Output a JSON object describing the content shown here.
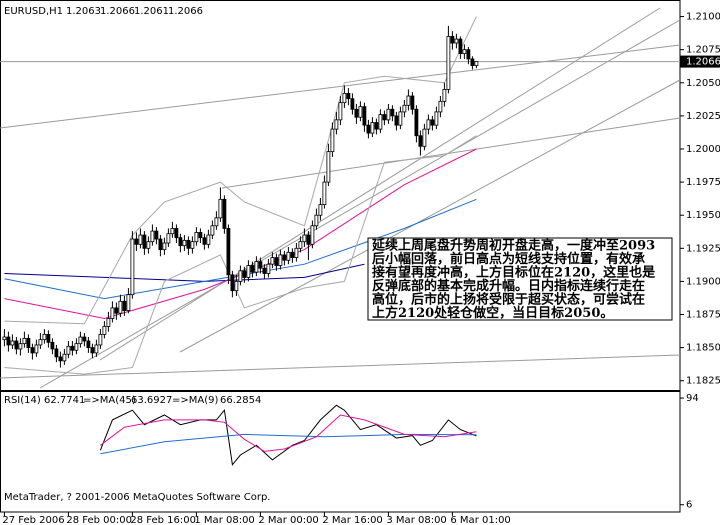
{
  "chart_data": [
    {
      "type": "candlestick",
      "symbol": "EURUSD,H1",
      "xlim": [
        -1.1,
        168.9
      ],
      "xticks": [
        {
          "value": 0,
          "label": "27 Feb 2006"
        },
        {
          "value": 16,
          "label": "28 Feb 00:00"
        },
        {
          "value": 32,
          "label": "28 Feb 16:00"
        },
        {
          "value": 48,
          "label": "1 Mar 08:00"
        },
        {
          "value": 64,
          "label": "2 Mar 00:00"
        },
        {
          "value": 80,
          "label": "2 Mar 16:00"
        },
        {
          "value": 96,
          "label": "3 Mar 08:00"
        },
        {
          "value": 112,
          "label": "6 Mar 01:00"
        }
      ],
      "ylim": [
        1.1818,
        1.2111
      ],
      "yticks": [
        {
          "value": 1.21,
          "label": "1.2100"
        },
        1.2075,
        {
          "value": 1.205,
          "label": "1.2050"
        },
        1.2025,
        {
          "value": 1.2,
          "label": "1.2000"
        },
        1.1975,
        {
          "value": 1.195,
          "label": "1.1950"
        },
        1.1925,
        {
          "value": 1.19,
          "label": "1.1900"
        },
        1.1875,
        {
          "value": 1.185,
          "label": "1.1850"
        },
        1.1825
      ],
      "bull_color": "#ffffff",
      "bear_color": "#000000",
      "open": [
        1.1856,
        1.1858,
        1.1852,
        1.1855,
        1.1849,
        1.1853,
        1.1857,
        1.185,
        1.1846,
        1.1852,
        1.1856,
        1.186,
        1.1854,
        1.1849,
        1.1843,
        1.184,
        1.1845,
        1.1851,
        1.1848,
        1.1853,
        1.1858,
        1.1855,
        1.185,
        1.1846,
        1.1852,
        1.186,
        1.1866,
        1.1872,
        1.188,
        1.1876,
        1.1885,
        1.1878,
        1.189,
        1.1932,
        1.1928,
        1.1935,
        1.1925,
        1.193,
        1.1938,
        1.1932,
        1.1924,
        1.1929,
        1.1936,
        1.194,
        1.1933,
        1.1927,
        1.1931,
        1.1925,
        1.193,
        1.1937,
        1.1933,
        1.1928,
        1.1935,
        1.1942,
        1.1948,
        1.1962,
        1.194,
        1.1905,
        1.1893,
        1.19,
        1.1908,
        1.1903,
        1.1912,
        1.1907,
        1.1915,
        1.191,
        1.1906,
        1.1913,
        1.1918,
        1.1912,
        1.192,
        1.1916,
        1.1922,
        1.1918,
        1.1925,
        1.193,
        1.1935,
        1.1928,
        1.1942,
        1.195,
        1.1958,
        1.1975,
        1.1998,
        1.2015,
        1.2022,
        1.2035,
        1.2042,
        1.2038,
        1.203,
        1.2024,
        1.2032,
        1.2018,
        1.2012,
        1.202,
        1.2015,
        1.2026,
        1.2022,
        1.203,
        1.2025,
        1.2018,
        1.2028,
        1.2033,
        1.204,
        1.203,
        1.201,
        1.2002,
        1.2015,
        1.2022,
        1.2018,
        1.2028,
        1.2036,
        1.2045,
        1.2085,
        1.208,
        1.2083,
        1.2072,
        1.2075,
        1.2068,
        1.2063
      ],
      "high": [
        1.1864,
        1.1862,
        1.186,
        1.1858,
        1.1857,
        1.1862,
        1.186,
        1.1853,
        1.1856,
        1.1861,
        1.1864,
        1.1863,
        1.1857,
        1.1852,
        1.1847,
        1.1849,
        1.1855,
        1.1855,
        1.1857,
        1.1862,
        1.1861,
        1.1858,
        1.1853,
        1.1856,
        1.1864,
        1.187,
        1.1877,
        1.1885,
        1.1884,
        1.189,
        1.1889,
        1.1895,
        1.1938,
        1.1937,
        1.194,
        1.1938,
        1.1934,
        1.1943,
        1.1941,
        1.1935,
        1.1933,
        1.194,
        1.1945,
        1.1943,
        1.1936,
        1.1935,
        1.1934,
        1.1934,
        1.1941,
        1.194,
        1.1936,
        1.1939,
        1.1946,
        1.1953,
        1.1971,
        1.1965,
        1.1943,
        1.1908,
        1.1905,
        1.1912,
        1.1911,
        1.1916,
        1.1915,
        1.1919,
        1.1918,
        1.1913,
        1.1917,
        1.1922,
        1.1921,
        1.1924,
        1.1923,
        1.1926,
        1.1925,
        1.1929,
        1.1934,
        1.194,
        1.1938,
        1.1946,
        1.1955,
        1.1963,
        1.198,
        1.2004,
        1.202,
        1.2028,
        1.204,
        1.2048,
        1.2046,
        1.2042,
        1.2034,
        1.2036,
        1.2035,
        1.2022,
        1.2024,
        1.2023,
        1.203,
        1.2029,
        1.2034,
        1.2033,
        1.2028,
        1.2032,
        1.2037,
        1.2045,
        1.2043,
        1.2033,
        1.2014,
        1.2019,
        1.2026,
        1.2025,
        1.2032,
        1.204,
        1.205,
        1.2093,
        1.2089,
        1.2087,
        1.2085,
        1.2079,
        1.2077,
        1.207,
        1.2066
      ],
      "low": [
        1.1851,
        1.1847,
        1.1849,
        1.1845,
        1.1844,
        1.185,
        1.1846,
        1.1841,
        1.1843,
        1.1849,
        1.1853,
        1.185,
        1.1845,
        1.1839,
        1.1835,
        1.1837,
        1.1842,
        1.1844,
        1.1845,
        1.185,
        1.1851,
        1.1846,
        1.1842,
        1.1843,
        1.1849,
        1.1857,
        1.1862,
        1.1869,
        1.1871,
        1.1873,
        1.1874,
        1.1876,
        1.1887,
        1.1923,
        1.1925,
        1.192,
        1.1921,
        1.1927,
        1.1928,
        1.1919,
        1.192,
        1.1926,
        1.1933,
        1.1929,
        1.1922,
        1.1923,
        1.192,
        1.1921,
        1.1927,
        1.1929,
        1.1924,
        1.1925,
        1.1932,
        1.1939,
        1.1945,
        1.1936,
        1.1898,
        1.1888,
        1.1889,
        1.1897,
        1.1899,
        1.19,
        1.1903,
        1.1904,
        1.1906,
        1.1902,
        1.1903,
        1.191,
        1.1908,
        1.1909,
        1.1912,
        1.1913,
        1.1914,
        1.1915,
        1.1922,
        1.1926,
        1.1916,
        1.1925,
        1.1939,
        1.1946,
        1.1955,
        1.1972,
        1.1994,
        1.2011,
        1.2018,
        1.2031,
        1.2033,
        1.2026,
        1.2019,
        1.2021,
        1.2013,
        1.2008,
        1.2009,
        1.2011,
        1.2012,
        1.2018,
        1.2019,
        1.2021,
        1.2014,
        1.2015,
        1.2024,
        1.2029,
        1.2026,
        1.2005,
        1.1995,
        1.1999,
        1.2011,
        1.2014,
        1.2015,
        1.2024,
        1.2032,
        1.2042,
        1.2075,
        1.2076,
        1.2068,
        1.2068,
        1.2064,
        1.206,
        1.2061
      ],
      "close": [
        1.1858,
        1.1852,
        1.1855,
        1.1849,
        1.1853,
        1.1857,
        1.185,
        1.1846,
        1.1852,
        1.1856,
        1.186,
        1.1854,
        1.1849,
        1.1843,
        1.184,
        1.1845,
        1.1851,
        1.1848,
        1.1853,
        1.1858,
        1.1855,
        1.185,
        1.1846,
        1.1852,
        1.186,
        1.1866,
        1.1872,
        1.188,
        1.1876,
        1.1885,
        1.1878,
        1.189,
        1.1932,
        1.1928,
        1.1935,
        1.1925,
        1.193,
        1.1938,
        1.1932,
        1.1924,
        1.1929,
        1.1936,
        1.194,
        1.1933,
        1.1927,
        1.1931,
        1.1925,
        1.193,
        1.1937,
        1.1933,
        1.1928,
        1.1935,
        1.1942,
        1.1948,
        1.1962,
        1.194,
        1.1905,
        1.1893,
        1.19,
        1.1908,
        1.1903,
        1.1912,
        1.1907,
        1.1915,
        1.191,
        1.1906,
        1.1913,
        1.1918,
        1.1912,
        1.192,
        1.1916,
        1.1922,
        1.1918,
        1.1925,
        1.193,
        1.1935,
        1.1928,
        1.1942,
        1.195,
        1.1958,
        1.1975,
        1.1998,
        1.2015,
        1.2022,
        1.2035,
        1.2042,
        1.2038,
        1.203,
        1.2024,
        1.2032,
        1.2018,
        1.2012,
        1.202,
        1.2015,
        1.2026,
        1.2022,
        1.203,
        1.2025,
        1.2018,
        1.2028,
        1.2033,
        1.204,
        1.203,
        1.201,
        1.2002,
        1.2015,
        1.2022,
        1.2018,
        1.2028,
        1.2036,
        1.2045,
        1.2085,
        1.208,
        1.2083,
        1.2072,
        1.2075,
        1.2068,
        1.2063,
        1.2066
      ],
      "overlays": [
        {
          "color": "#00008b",
          "x": [
            0,
            25,
            50,
            75,
            90
          ],
          "values": [
            1.1906,
            1.1903,
            1.19,
            1.1903,
            1.1913
          ]
        },
        {
          "color": "#1e6fd0",
          "x": [
            0,
            25,
            50,
            75,
            100,
            118
          ],
          "values": [
            1.1902,
            1.1887,
            1.19,
            1.1913,
            1.194,
            1.1962
          ]
        },
        {
          "color": "#e0139a",
          "x": [
            0,
            25,
            50,
            75,
            100,
            118
          ],
          "values": [
            1.1887,
            1.1872,
            1.1894,
            1.1924,
            1.1973,
            1.2
          ]
        },
        {
          "color": "#a8a8a8",
          "x": [
            0,
            20,
            32,
            40,
            54,
            60,
            75,
            85,
            95,
            110,
            118
          ],
          "values": [
            1.187,
            1.1868,
            1.1935,
            1.196,
            1.1975,
            1.196,
            1.1942,
            1.205,
            1.2055,
            1.205,
            1.21
          ]
        },
        {
          "color": "#a8a8a8",
          "x": [
            0,
            20,
            32,
            40,
            54,
            60,
            75,
            85,
            95,
            110,
            118
          ],
          "values": [
            1.1835,
            1.183,
            1.1835,
            1.19,
            1.192,
            1.188,
            1.1895,
            1.19,
            1.199,
            1.1995,
            1.201
          ]
        }
      ],
      "annotation_lines": [
        "延续上周尾盘升势周初开盘走高，一度冲至2093",
        "后小幅回落，前日高点为短线支持位置，有效承",
        "接有望再度冲高，上方目标位在2120，这里也是",
        "反弹底部的基本完成升幅。日内指标连续行走在",
        "高位，后市的上扬将受限于超买状态，可尝试在",
        "上方2120处轻仓做空，当日目标2050。"
      ]
    },
    {
      "type": "line",
      "xlim": [
        -1.1,
        168.9
      ],
      "ylim": [
        0,
        99
      ],
      "yticks": [
        94,
        6
      ],
      "series": [
        {
          "name": "RSI(14)",
          "color": "#000000",
          "x": [
            24,
            27,
            32,
            35,
            40,
            44,
            49,
            53,
            55,
            57,
            59,
            63,
            67,
            72,
            75,
            79,
            83,
            85,
            89,
            93,
            98,
            102,
            104,
            107,
            111,
            114,
            118
          ],
          "values": [
            51,
            76,
            84,
            72,
            80,
            72,
            76,
            76,
            84,
            39,
            47,
            55,
            43,
            55,
            59,
            76,
            88,
            84,
            68,
            72,
            61,
            63,
            55,
            59,
            76,
            68,
            62.7741
          ]
        },
        {
          "name": "=>MA(45)",
          "color": "#1e6fd0",
          "x": [
            24,
            40,
            60,
            80,
            100,
            118
          ],
          "values": [
            48,
            58,
            64,
            62,
            64,
            63.6927
          ]
        },
        {
          "name": "=>MA(9)",
          "color": "#e0139a",
          "x": [
            24,
            30,
            40,
            50,
            55,
            60,
            65,
            70,
            78,
            84,
            90,
            100,
            110,
            118
          ],
          "values": [
            55,
            70,
            76,
            76,
            74,
            60,
            50,
            52,
            62,
            80,
            76,
            64,
            62,
            66.2854
          ]
        }
      ]
    }
  ],
  "footer": "MetaTrader, ? 2001-2006 MetaQuotes Software Corp."
}
